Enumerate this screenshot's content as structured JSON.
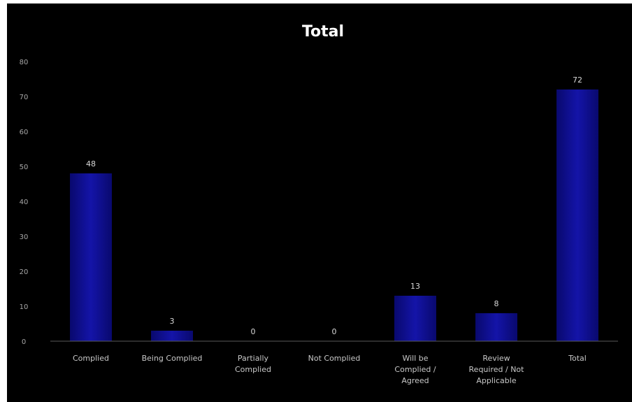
{
  "chart_data": {
    "type": "bar",
    "title": "Total",
    "xlabel": "",
    "ylabel": "",
    "categories": [
      "Complied",
      "Being Complied",
      "Partially Complied",
      "Not Complied",
      "Will be Complied / Agreed",
      "Review Required / Not Applicable",
      "Total"
    ],
    "values": [
      48,
      3,
      0,
      0,
      13,
      8,
      72
    ],
    "ylim": [
      0,
      80
    ],
    "yticks": [
      0,
      10,
      20,
      30,
      40,
      50,
      60,
      70,
      80
    ],
    "grid": false,
    "legend": "none",
    "data_labels": true
  },
  "colors": {
    "background": "#000000",
    "bar": "#0d0d8a",
    "bar_light": "#1a1ab0",
    "axis_line": "#5a5a5a",
    "title": "#ffffff",
    "tick_label": "#a8a8a8",
    "category_label": "#c8c8c8",
    "value_label": "#d8d8d8"
  }
}
